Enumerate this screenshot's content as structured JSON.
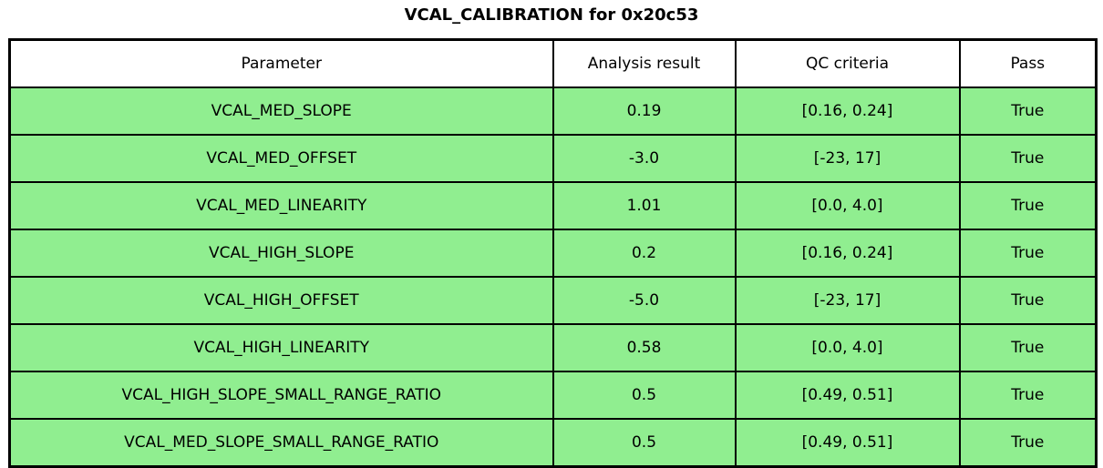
{
  "chart_data": {
    "type": "table",
    "title": "VCAL_CALIBRATION for 0x20c53",
    "columns": [
      "Parameter",
      "Analysis result",
      "QC criteria",
      "Pass"
    ],
    "rows": [
      [
        "VCAL_MED_SLOPE",
        "0.19",
        "[0.16, 0.24]",
        "True"
      ],
      [
        "VCAL_MED_OFFSET",
        "-3.0",
        "[-23, 17]",
        "True"
      ],
      [
        "VCAL_MED_LINEARITY",
        "1.01",
        "[0.0, 4.0]",
        "True"
      ],
      [
        "VCAL_HIGH_SLOPE",
        "0.2",
        "[0.16, 0.24]",
        "True"
      ],
      [
        "VCAL_HIGH_OFFSET",
        "-5.0",
        "[-23, 17]",
        "True"
      ],
      [
        "VCAL_HIGH_LINEARITY",
        "0.58",
        "[0.0, 4.0]",
        "True"
      ],
      [
        "VCAL_HIGH_SLOPE_SMALL_RANGE_RATIO",
        "0.5",
        "[0.49, 0.51]",
        "True"
      ],
      [
        "VCAL_MED_SLOPE_SMALL_RANGE_RATIO",
        "0.5",
        "[0.49, 0.51]",
        "True"
      ]
    ],
    "layout": {
      "header_background": "#FFFFFF",
      "row_background": "#90EE90",
      "border_color": "#000000",
      "text_color": "#000000",
      "grid": "on",
      "all_rows_pass": true
    }
  },
  "colors": {
    "row_fill": "#90EE90",
    "header_fill": "#FFFFFF",
    "border": "#000000",
    "text": "#000000"
  }
}
